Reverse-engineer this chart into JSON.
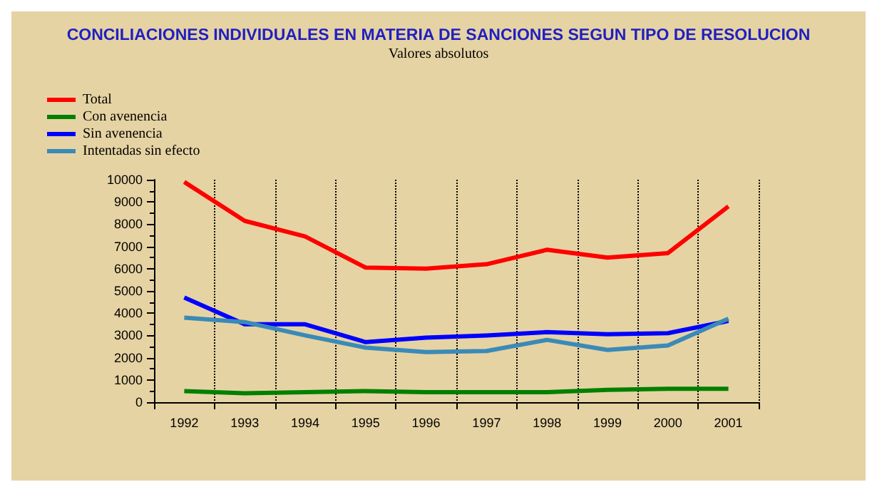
{
  "chart_data": {
    "type": "line",
    "title": "CONCILIACIONES INDIVIDUALES EN MATERIA DE SANCIONES SEGUN TIPO DE RESOLUCION",
    "subtitle": "Valores absolutos",
    "categories": [
      "1992",
      "1993",
      "1994",
      "1995",
      "1996",
      "1997",
      "1998",
      "1999",
      "2000",
      "2001"
    ],
    "series": [
      {
        "name": "Total",
        "color": "#ff0000",
        "values": [
          9900,
          8150,
          7450,
          6050,
          6000,
          6200,
          6850,
          6500,
          6700,
          8800
        ]
      },
      {
        "name": "Con avenencia",
        "color": "#008000",
        "values": [
          500,
          400,
          450,
          500,
          450,
          450,
          450,
          550,
          600,
          600
        ]
      },
      {
        "name": "Sin avenencia",
        "color": "#0000ff",
        "values": [
          4700,
          3500,
          3500,
          2700,
          2900,
          3000,
          3150,
          3050,
          3100,
          3650
        ]
      },
      {
        "name": "Intentadas sin efecto",
        "color": "#3a8ab8",
        "values": [
          3800,
          3600,
          3000,
          2450,
          2250,
          2300,
          2800,
          2350,
          2550,
          3750
        ]
      }
    ],
    "ylim": [
      0,
      10000
    ],
    "yticks": [
      0,
      1000,
      2000,
      3000,
      4000,
      5000,
      6000,
      7000,
      8000,
      9000,
      10000
    ],
    "grid": "x",
    "legend": "top left",
    "marker": "none",
    "line_style": "solid"
  }
}
